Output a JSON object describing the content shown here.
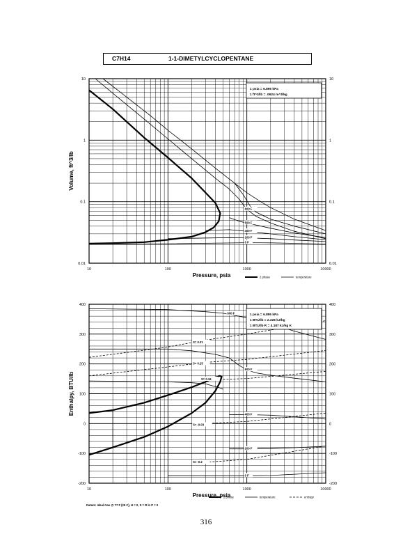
{
  "title": {
    "formula": "C7H14",
    "name": "1-1-DIMETYLCYCLOPENTANE"
  },
  "page_number": "316",
  "chart_data": [
    {
      "type": "line",
      "id": "volume",
      "xlabel": "Pressure,  psia",
      "ylabel": "Volume,  ft^3/lb",
      "xscale": "log",
      "yscale": "log",
      "xlim": [
        10,
        10000
      ],
      "ylim": [
        0.01,
        10
      ],
      "grid": true,
      "x_ticks": [
        10,
        100,
        1000,
        10000
      ],
      "x_tick_labels": [
        "10",
        "100",
        "1000",
        "10000"
      ],
      "y_ticks": [
        0.01,
        0.1,
        1,
        10
      ],
      "y_tick_labels": [
        "0.01",
        "0.1",
        "1",
        "10"
      ],
      "conversion_box": [
        "1 psia  =  6.895 kPa",
        "1 ft^3/lb  =  .0624 m^3/kg"
      ],
      "legend": {
        "position": "below-right",
        "entries": [
          {
            "label": "2 phase",
            "style": "thick"
          },
          {
            "label": "temperature",
            "style": "thin"
          }
        ]
      },
      "series": [
        {
          "name": "2 phase",
          "style": "thick",
          "points": [
            [
              10,
              6.5
            ],
            [
              20,
              3.2
            ],
            [
              50,
              1.1
            ],
            [
              100,
              0.52
            ],
            [
              200,
              0.24
            ],
            [
              300,
              0.14
            ],
            [
              400,
              0.095
            ],
            [
              460,
              0.065
            ],
            [
              440,
              0.048
            ],
            [
              380,
              0.038
            ],
            [
              300,
              0.032
            ],
            [
              200,
              0.027
            ],
            [
              100,
              0.024
            ],
            [
              50,
              0.022
            ],
            [
              20,
              0.0212
            ],
            [
              10,
              0.0208
            ]
          ]
        },
        {
          "name": "",
          "style": "thin",
          "points": [
            [
              12,
              10
            ],
            [
              20,
              5.8
            ],
            [
              50,
              2.2
            ],
            [
              100,
              1.05
            ],
            [
              200,
              0.5
            ],
            [
              400,
              0.24
            ],
            [
              600,
              0.16
            ],
            [
              800,
              0.11
            ],
            [
              1000,
              0.075
            ],
            [
              1300,
              0.058
            ],
            [
              2000,
              0.045
            ],
            [
              4000,
              0.033
            ],
            [
              10000,
              0.025
            ]
          ]
        },
        {
          "name": "",
          "style": "thin",
          "points": [
            [
              15,
              10
            ],
            [
              30,
              5
            ],
            [
              60,
              2.5
            ],
            [
              100,
              1.45
            ],
            [
              200,
              0.72
            ],
            [
              400,
              0.35
            ],
            [
              700,
              0.2
            ],
            [
              1000,
              0.14
            ],
            [
              1500,
              0.1
            ],
            [
              2000,
              0.08
            ],
            [
              4000,
              0.052
            ],
            [
              10000,
              0.034
            ]
          ]
        },
        {
          "name": "600 F",
          "style": "thin",
          "points": [
            [
              700,
              0.2
            ],
            [
              900,
              0.13
            ],
            [
              1100,
              0.085
            ],
            [
              1300,
              0.068
            ],
            [
              2000,
              0.052
            ],
            [
              4000,
              0.04
            ],
            [
              10000,
              0.03
            ]
          ]
        },
        {
          "name": "500 F",
          "style": "thin",
          "points": [
            [
              600,
              0.055
            ],
            [
              800,
              0.048
            ],
            [
              1000,
              0.045
            ],
            [
              2000,
              0.037
            ],
            [
              4000,
              0.031
            ],
            [
              10000,
              0.026
            ]
          ]
        },
        {
          "name": "400 F",
          "style": "thin",
          "points": [
            [
              300,
              0.034
            ],
            [
              600,
              0.035
            ],
            [
              1000,
              0.033
            ],
            [
              2000,
              0.03
            ],
            [
              4000,
              0.027
            ],
            [
              10000,
              0.024
            ]
          ]
        },
        {
          "name": "200 F",
          "style": "thin",
          "points": [
            [
              100,
              0.025
            ],
            [
              600,
              0.026
            ],
            [
              1000,
              0.0258
            ],
            [
              2000,
              0.025
            ],
            [
              4000,
              0.0238
            ],
            [
              10000,
              0.0225
            ]
          ]
        },
        {
          "name": "0 F",
          "style": "thin",
          "points": [
            [
              10,
              0.0205
            ],
            [
              100,
              0.0207
            ],
            [
              1000,
              0.0215
            ],
            [
              2000,
              0.0214
            ],
            [
              4000,
              0.021
            ],
            [
              10000,
              0.0205
            ]
          ]
        }
      ],
      "curve_labels": [
        {
          "text": "600 F",
          "x": 1000,
          "y": 0.075
        },
        {
          "text": "500 F",
          "x": 1000,
          "y": 0.045
        },
        {
          "text": "400 F",
          "x": 1000,
          "y": 0.033
        },
        {
          "text": "200 F",
          "x": 1000,
          "y": 0.0258
        },
        {
          "text": "0 F",
          "x": 1000,
          "y": 0.0215
        }
      ]
    },
    {
      "type": "line",
      "id": "enthalpy",
      "xlabel": "Pressure,  psia",
      "ylabel": "Enthalpy,  BTU/lb",
      "xscale": "log",
      "yscale": "linear",
      "xlim": [
        10,
        10000
      ],
      "ylim": [
        -200,
        400
      ],
      "grid": true,
      "x_ticks": [
        10,
        100,
        1000,
        10000
      ],
      "x_tick_labels": [
        "10",
        "100",
        "1000",
        "10000"
      ],
      "y_ticks": [
        -200,
        -100,
        0,
        100,
        200,
        300,
        400
      ],
      "y_tick_labels": [
        "-200",
        "-100",
        "0",
        "100",
        "200",
        "300",
        "400"
      ],
      "conversion_box": [
        "1 psia  =  6.895 kPa",
        "1 BTU/lb  =  2.326 kJ/kg",
        "1 BTU/lb R  =  4.187 kJ/kg K"
      ],
      "datum_note": "Datum: Ideal Gas @ 77 F (25 C),  H = 0,  S = R ln P = 0",
      "legend": {
        "position": "below-right",
        "entries": [
          {
            "label": "2 phase",
            "style": "thick"
          },
          {
            "label": "temperature",
            "style": "thin"
          },
          {
            "label": "entropy",
            "style": "dashed"
          }
        ]
      },
      "series": [
        {
          "name": "2 phase",
          "style": "thick",
          "points": [
            [
              10,
              35
            ],
            [
              20,
              45
            ],
            [
              50,
              70
            ],
            [
              100,
              95
            ],
            [
              200,
              122
            ],
            [
              300,
              140
            ],
            [
              400,
              155
            ],
            [
              450,
              160
            ],
            [
              480,
              158
            ],
            [
              460,
              140
            ],
            [
              400,
              110
            ],
            [
              300,
              70
            ],
            [
              200,
              35
            ],
            [
              100,
              -10
            ],
            [
              50,
              -45
            ],
            [
              20,
              -80
            ],
            [
              10,
              -105
            ]
          ]
        },
        {
          "name": "",
          "style": "thin",
          "points": [
            [
              10,
              143
            ],
            [
              100,
              140
            ],
            [
              200,
              137
            ],
            [
              300,
              133
            ],
            [
              450,
              120
            ],
            [
              500,
              115
            ]
          ]
        },
        {
          "name": "",
          "style": "thin",
          "points": [
            [
              10,
              250
            ],
            [
              100,
              250
            ],
            [
              200,
              244
            ],
            [
              400,
              232
            ],
            [
              600,
              220
            ],
            [
              800,
              195
            ],
            [
              1000,
              180
            ],
            [
              1300,
              170
            ],
            [
              2000,
              162
            ],
            [
              4000,
              152
            ],
            [
              10000,
              140
            ]
          ]
        },
        {
          "name": "600 F",
          "style": "thin",
          "points": [
            [
              10,
              385
            ],
            [
              100,
              382
            ],
            [
              300,
              375
            ],
            [
              500,
              370
            ],
            [
              1000,
              355
            ],
            [
              2000,
              335
            ],
            [
              4000,
              310
            ],
            [
              10000,
              282
            ]
          ]
        },
        {
          "name": "400 F",
          "style": "thin",
          "points": [
            [
              600,
              30
            ],
            [
              1000,
              30
            ],
            [
              2000,
              28
            ],
            [
              4000,
              23
            ],
            [
              10000,
              15
            ]
          ]
        },
        {
          "name": "200 F",
          "style": "thin",
          "points": [
            [
              600,
              -85
            ],
            [
              1000,
              -85
            ],
            [
              2000,
              -84
            ],
            [
              4000,
              -81
            ],
            [
              10000,
              -76
            ]
          ]
        },
        {
          "name": "0 F",
          "style": "thin",
          "points": [
            [
              100,
              -175
            ],
            [
              1000,
              -175
            ],
            [
              2000,
              -174
            ],
            [
              4000,
              -170
            ],
            [
              10000,
              -165
            ]
          ]
        },
        {
          "name": "S= 0.31",
          "style": "dashed",
          "points": [
            [
              10,
              222
            ],
            [
              50,
              246
            ],
            [
              100,
              257
            ],
            [
              300,
              280
            ],
            [
              1000,
              300
            ],
            [
              10000,
              345
            ]
          ]
        },
        {
          "name": "S= 0.25",
          "style": "dashed",
          "points": [
            [
              10,
              160
            ],
            [
              100,
              190
            ],
            [
              300,
              205
            ],
            [
              1000,
              215
            ],
            [
              10000,
              245
            ]
          ]
        },
        {
          "name": "S= 0.16",
          "style": "dashed",
          "points": [
            [
              500,
              148
            ],
            [
              1000,
              151
            ],
            [
              10000,
              175
            ]
          ]
        },
        {
          "name": "S= -0.03",
          "style": "dashed",
          "points": [
            [
              300,
              0
            ],
            [
              1000,
              7
            ],
            [
              10000,
              35
            ]
          ]
        },
        {
          "name": "S= -0.2",
          "style": "dashed",
          "points": [
            [
              300,
              -130
            ],
            [
              1000,
              -120
            ],
            [
              10000,
              -75
            ]
          ]
        }
      ],
      "curve_labels": [
        {
          "text": "600 F",
          "x": 600,
          "y": 368
        },
        {
          "text": "600 F",
          "x": 1000,
          "y": 180
        },
        {
          "text": "400 F",
          "x": 1000,
          "y": 30
        },
        {
          "text": "200 F",
          "x": 1000,
          "y": -85
        },
        {
          "text": "0 F",
          "x": 1000,
          "y": -175
        },
        {
          "text": "S= 0.31",
          "x": 220,
          "y": 272
        },
        {
          "text": "S= 0.25",
          "x": 220,
          "y": 200
        },
        {
          "text": "S= 0.16",
          "x": 280,
          "y": 148
        },
        {
          "text": "S= -0.03",
          "x": 220,
          "y": -5
        },
        {
          "text": "S= -0.2",
          "x": 220,
          "y": -130
        }
      ],
      "vertical_tie_lines": [
        {
          "x": 20,
          "y1": -80,
          "y2": 45
        },
        {
          "x": 200,
          "y1": 35,
          "y2": 122
        }
      ]
    }
  ]
}
